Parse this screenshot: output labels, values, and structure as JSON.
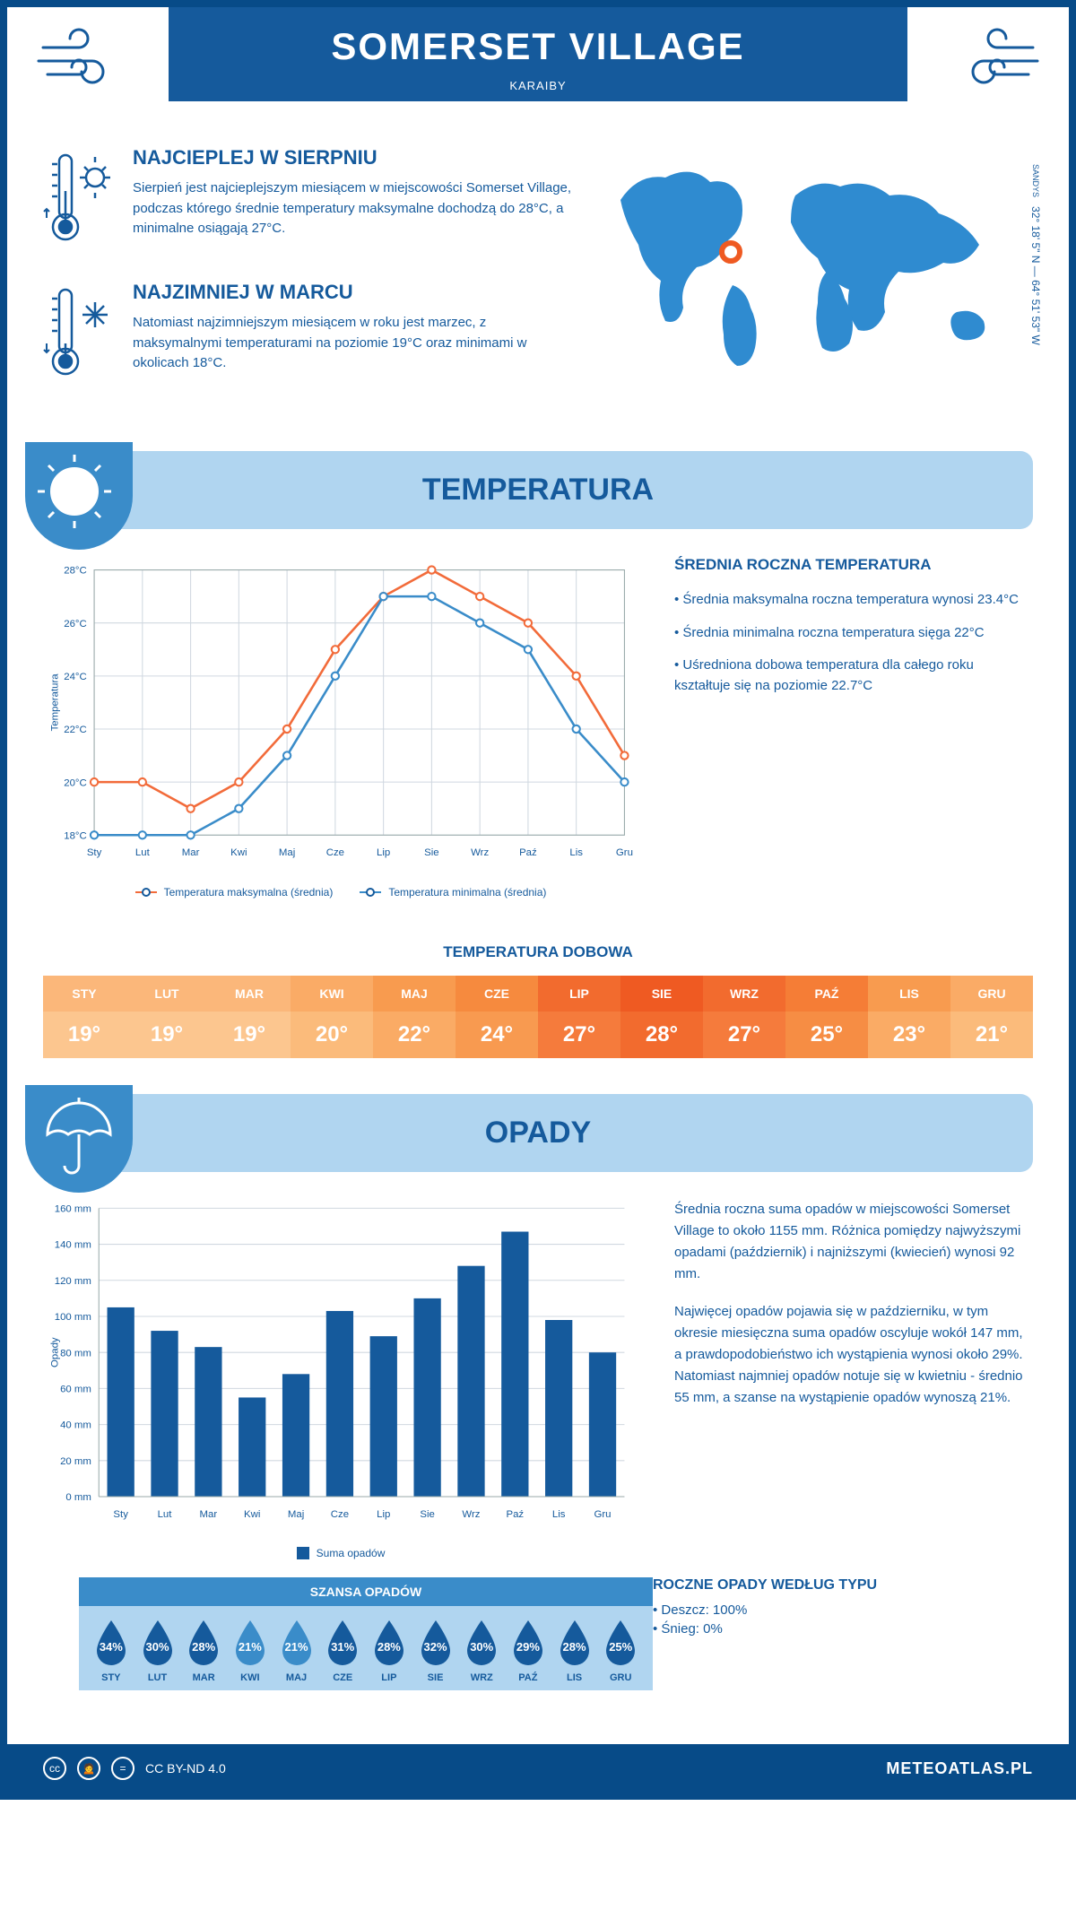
{
  "header": {
    "title": "SOMERSET VILLAGE",
    "subtitle": "KARAIBY",
    "coords": "32° 18' 5\" N — 64° 51' 53\" W",
    "region": "SANDYS"
  },
  "intro": {
    "hot": {
      "title": "NAJCIEPLEJ W SIERPNIU",
      "text": "Sierpień jest najcieplejszym miesiącem w miejscowości Somerset Village, podczas którego średnie temperatury maksymalne dochodzą do 28°C, a minimalne osiągają 27°C."
    },
    "cold": {
      "title": "NAJZIMNIEJ W MARCU",
      "text": "Natomiast najzimniejszym miesiącem w roku jest marzec, z maksymalnymi temperaturami na poziomie 19°C oraz minimami w okolicach 18°C."
    }
  },
  "temp_section": {
    "title": "TEMPERATURA",
    "info_title": "ŚREDNIA ROCZNA TEMPERATURA",
    "bullets": [
      "• Średnia maksymalna roczna temperatura wynosi 23.4°C",
      "• Średnia minimalna roczna temperatura sięga 22°C",
      "• Uśredniona dobowa temperatura dla całego roku kształtuje się na poziomie 22.7°C"
    ],
    "chart": {
      "type": "line",
      "months": [
        "Sty",
        "Lut",
        "Mar",
        "Kwi",
        "Maj",
        "Cze",
        "Lip",
        "Sie",
        "Wrz",
        "Paź",
        "Lis",
        "Gru"
      ],
      "ylabel": "Temperatura",
      "ymin": 18,
      "ymax": 28,
      "ystep": 2,
      "series": [
        {
          "name": "Temperatura maksymalna (średnia)",
          "color": "#f26b3a",
          "values": [
            20,
            20,
            19,
            20,
            22,
            25,
            27,
            28,
            27,
            26,
            24,
            21
          ]
        },
        {
          "name": "Temperatura minimalna (średnia)",
          "color": "#3a8cc9",
          "values": [
            18,
            18,
            18,
            19,
            21,
            24,
            27,
            27,
            26,
            25,
            22,
            20
          ]
        }
      ],
      "grid_color": "#d0d8e0",
      "bg": "#ffffff"
    },
    "daily": {
      "title": "TEMPERATURA DOBOWA",
      "months": [
        "STY",
        "LUT",
        "MAR",
        "KWI",
        "MAJ",
        "CZE",
        "LIP",
        "SIE",
        "WRZ",
        "PAŹ",
        "LIS",
        "GRU"
      ],
      "values": [
        "19°",
        "19°",
        "19°",
        "20°",
        "22°",
        "24°",
        "27°",
        "28°",
        "27°",
        "25°",
        "23°",
        "21°"
      ],
      "hdr_colors": [
        "#fbb77a",
        "#fbb77a",
        "#fbb77a",
        "#faab66",
        "#f89b4f",
        "#f68a3e",
        "#f26b2e",
        "#ef5a22",
        "#f26b2e",
        "#f57d36",
        "#f89b4f",
        "#faab66"
      ],
      "val_colors": [
        "#fcc68f",
        "#fcc68f",
        "#fcc68f",
        "#fbbb7b",
        "#faab65",
        "#f89a50",
        "#f57b3c",
        "#f26b2e",
        "#f57b3c",
        "#f68d44",
        "#faab65",
        "#fbbb7b"
      ]
    }
  },
  "precip_section": {
    "title": "OPADY",
    "chart": {
      "type": "bar",
      "months": [
        "Sty",
        "Lut",
        "Mar",
        "Kwi",
        "Maj",
        "Cze",
        "Lip",
        "Sie",
        "Wrz",
        "Paź",
        "Lis",
        "Gru"
      ],
      "ylabel": "Opady",
      "ymin": 0,
      "ymax": 160,
      "ystep": 20,
      "values": [
        105,
        92,
        83,
        55,
        68,
        103,
        89,
        110,
        128,
        147,
        98,
        80
      ],
      "bar_color": "#155a9c",
      "legend": "Suma opadów",
      "grid_color": "#d0d8e0"
    },
    "info": [
      "Średnia roczna suma opadów w miejscowości Somerset Village to około 1155 mm. Różnica pomiędzy najwyższymi opadami (październik) i najniższymi (kwiecień) wynosi 92 mm.",
      "Najwięcej opadów pojawia się w październiku, w tym okresie miesięczna suma opadów oscyluje wokół 147 mm, a prawdopodobieństwo ich wystąpienia wynosi około 29%. Natomiast najmniej opadów notuje się w kwietniu - średnio 55 mm, a szanse na wystąpienie opadów wynoszą 21%."
    ],
    "chance": {
      "title": "SZANSA OPADÓW",
      "months": [
        "STY",
        "LUT",
        "MAR",
        "KWI",
        "MAJ",
        "CZE",
        "LIP",
        "SIE",
        "WRZ",
        "PAŹ",
        "LIS",
        "GRU"
      ],
      "values": [
        "34%",
        "30%",
        "28%",
        "21%",
        "21%",
        "31%",
        "28%",
        "32%",
        "30%",
        "29%",
        "28%",
        "25%"
      ],
      "drop_colors": [
        "#155a9c",
        "#155a9c",
        "#155a9c",
        "#3a8cc9",
        "#3a8cc9",
        "#155a9c",
        "#155a9c",
        "#155a9c",
        "#155a9c",
        "#155a9c",
        "#155a9c",
        "#155a9c"
      ]
    },
    "type": {
      "title": "ROCZNE OPADY WEDŁUG TYPU",
      "items": [
        "• Deszcz: 100%",
        "• Śnieg: 0%"
      ]
    }
  },
  "footer": {
    "license": "CC BY-ND 4.0",
    "site": "METEOATLAS.PL"
  }
}
